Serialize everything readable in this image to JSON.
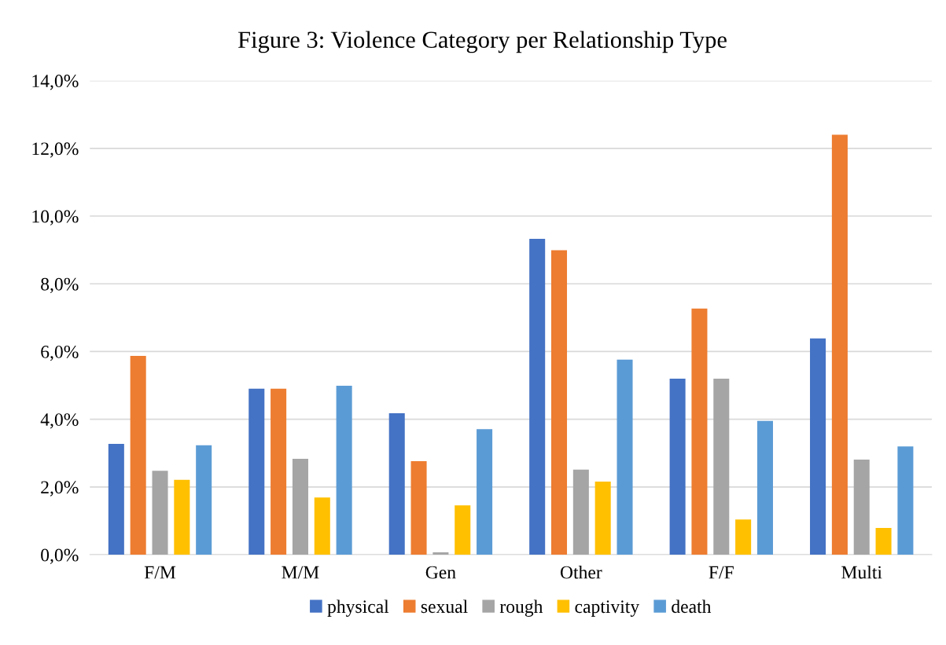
{
  "chart_data": {
    "type": "bar",
    "title": "Figure 3: Violence Category per Relationship Type",
    "categories": [
      "F/M",
      "M/M",
      "Gen",
      "Other",
      "F/F",
      "Multi"
    ],
    "series": [
      {
        "name": "physical",
        "color": "#4472c4",
        "values": [
          3.27,
          4.9,
          4.18,
          9.33,
          5.2,
          6.39
        ]
      },
      {
        "name": "sexual",
        "color": "#ed7d31",
        "values": [
          5.87,
          4.9,
          2.76,
          8.99,
          7.27,
          12.4
        ]
      },
      {
        "name": "rough",
        "color": "#a5a5a5",
        "values": [
          2.48,
          2.83,
          0.07,
          2.51,
          5.2,
          2.81
        ]
      },
      {
        "name": "captivity",
        "color": "#ffc000",
        "values": [
          2.21,
          1.69,
          1.46,
          2.16,
          1.04,
          0.79
        ]
      },
      {
        "name": "death",
        "color": "#5b9bd5",
        "values": [
          3.23,
          4.99,
          3.71,
          5.76,
          3.95,
          3.2
        ]
      }
    ],
    "ylim": [
      0,
      14
    ],
    "yticks": [
      {
        "value": 0,
        "label": "0,0%"
      },
      {
        "value": 2,
        "label": "2,0%"
      },
      {
        "value": 4,
        "label": "4,0%"
      },
      {
        "value": 6,
        "label": "6,0%"
      },
      {
        "value": 8,
        "label": "8,0%"
      },
      {
        "value": 10,
        "label": "10,0%"
      },
      {
        "value": 12,
        "label": "12,0%"
      },
      {
        "value": 14,
        "label": "14,0%"
      }
    ],
    "grid": "y",
    "legend": "bottom"
  }
}
